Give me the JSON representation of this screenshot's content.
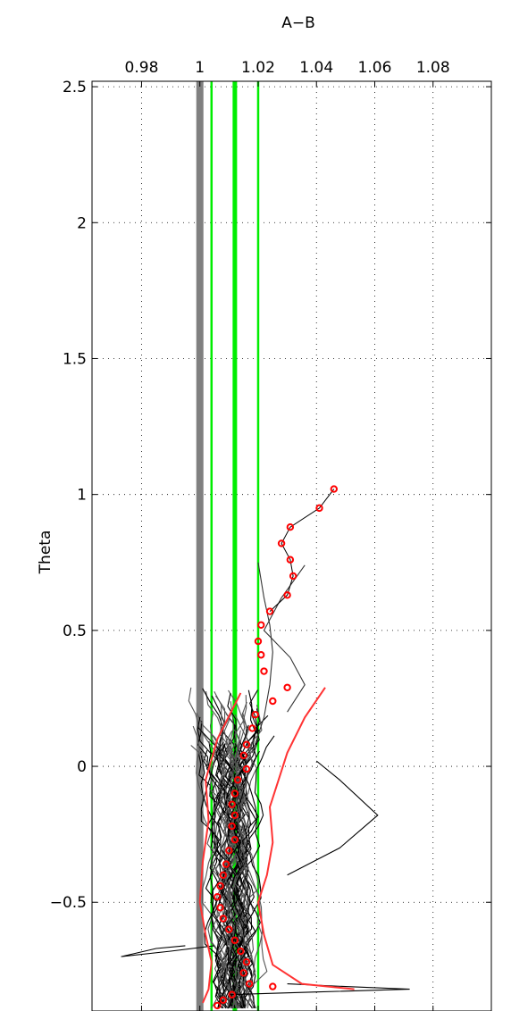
{
  "chart_data": {
    "type": "line",
    "title": "",
    "xlabel": "A−B",
    "ylabel": "Theta",
    "xlim": [
      0.963,
      1.1
    ],
    "ylim": [
      -0.9,
      2.52
    ],
    "grid": true,
    "x_axis_position": "top",
    "x_ticks": [
      0.98,
      1.0,
      1.02,
      1.04,
      1.06,
      1.08
    ],
    "x_tick_labels": [
      "0.98",
      "1",
      "1.02",
      "1.04",
      "1.06",
      "1.08"
    ],
    "y_ticks": [
      -0.5,
      0,
      0.5,
      1,
      1.5,
      2,
      2.5
    ],
    "y_tick_labels": [
      "−0.5",
      "0",
      "0.5",
      "1",
      "1.5",
      "2",
      "2.5"
    ],
    "reference_lines": [
      {
        "x": 1.0,
        "color": "#808080",
        "style": "thick"
      },
      {
        "x": 1.004,
        "color": "#00ee00",
        "style": "thin"
      },
      {
        "x": 1.012,
        "color": "#00ee00",
        "style": "thick"
      },
      {
        "x": 1.02,
        "color": "#00ee00",
        "style": "thin"
      }
    ],
    "mean_profile": {
      "color": "#ff0000",
      "marker": "circle",
      "points": [
        [
          1.046,
          1.02
        ],
        [
          1.041,
          0.95
        ],
        [
          1.031,
          0.88
        ],
        [
          1.028,
          0.82
        ],
        [
          1.031,
          0.76
        ],
        [
          1.032,
          0.7
        ],
        [
          1.03,
          0.63
        ],
        [
          1.024,
          0.57
        ],
        [
          1.021,
          0.52
        ],
        [
          1.02,
          0.46
        ],
        [
          1.021,
          0.41
        ],
        [
          1.022,
          0.35
        ],
        [
          1.03,
          0.29
        ],
        [
          1.025,
          0.24
        ],
        [
          1.019,
          0.19
        ],
        [
          1.018,
          0.14
        ],
        [
          1.016,
          0.08
        ],
        [
          1.015,
          0.04
        ],
        [
          1.016,
          -0.01
        ],
        [
          1.013,
          -0.05
        ],
        [
          1.012,
          -0.1
        ],
        [
          1.011,
          -0.14
        ],
        [
          1.012,
          -0.18
        ],
        [
          1.011,
          -0.22
        ],
        [
          1.012,
          -0.27
        ],
        [
          1.01,
          -0.31
        ],
        [
          1.009,
          -0.36
        ],
        [
          1.008,
          -0.4
        ],
        [
          1.007,
          -0.44
        ],
        [
          1.006,
          -0.48
        ],
        [
          1.007,
          -0.52
        ],
        [
          1.008,
          -0.56
        ],
        [
          1.01,
          -0.6
        ],
        [
          1.012,
          -0.64
        ],
        [
          1.014,
          -0.68
        ],
        [
          1.016,
          -0.72
        ],
        [
          1.015,
          -0.76
        ],
        [
          1.017,
          -0.8
        ],
        [
          1.011,
          -0.84
        ],
        [
          1.008,
          -0.86
        ],
        [
          1.006,
          -0.88
        ],
        [
          1.025,
          -0.81
        ]
      ]
    },
    "spread_bounds": {
      "color": "#ff3333",
      "lower": [
        [
          1.014,
          0.27
        ],
        [
          1.006,
          0.1
        ],
        [
          1.002,
          -0.05
        ],
        [
          1.003,
          -0.2
        ],
        [
          1.001,
          -0.35
        ],
        [
          1.0,
          -0.5
        ],
        [
          1.002,
          -0.62
        ],
        [
          1.004,
          -0.72
        ],
        [
          1.003,
          -0.82
        ],
        [
          1.001,
          -0.87
        ]
      ],
      "upper": [
        [
          1.043,
          0.29
        ],
        [
          1.036,
          0.18
        ],
        [
          1.03,
          0.05
        ],
        [
          1.027,
          -0.05
        ],
        [
          1.024,
          -0.15
        ],
        [
          1.025,
          -0.28
        ],
        [
          1.023,
          -0.4
        ],
        [
          1.02,
          -0.5
        ],
        [
          1.022,
          -0.62
        ],
        [
          1.025,
          -0.73
        ],
        [
          1.035,
          -0.8
        ],
        [
          1.053,
          -0.82
        ]
      ]
    },
    "ensemble": {
      "count": 60,
      "colors": [
        "#000000",
        "#555555"
      ],
      "theta_range": [
        -0.89,
        0.29
      ],
      "x_center": 1.012,
      "x_spread": 0.012,
      "highlighted": [
        {
          "color": "#333333",
          "points": [
            [
              1.02,
              0.75
            ],
            [
              1.022,
              0.62
            ],
            [
              1.024,
              0.52
            ],
            [
              1.025,
              0.42
            ],
            [
              1.024,
              0.3
            ],
            [
              1.022,
              0.18
            ],
            [
              1.018,
              0.05
            ]
          ]
        },
        {
          "color": "#333333",
          "points": [
            [
              1.036,
              0.74
            ],
            [
              1.028,
              0.62
            ],
            [
              1.022,
              0.5
            ],
            [
              1.031,
              0.4
            ],
            [
              1.036,
              0.3
            ],
            [
              1.03,
              0.2
            ]
          ]
        },
        {
          "color": "#000000",
          "points": [
            [
              1.04,
              0.02
            ],
            [
              1.048,
              -0.05
            ],
            [
              1.061,
              -0.18
            ],
            [
              1.048,
              -0.3
            ],
            [
              1.03,
              -0.4
            ]
          ]
        },
        {
          "color": "#000000",
          "points": [
            [
              0.995,
              -0.66
            ],
            [
              0.985,
              -0.67
            ],
            [
              0.973,
              -0.7
            ],
            [
              0.99,
              -0.68
            ],
            [
              1.005,
              -0.66
            ]
          ]
        },
        {
          "color": "#000000",
          "points": [
            [
              1.03,
              -0.8
            ],
            [
              1.05,
              -0.81
            ],
            [
              1.072,
              -0.82
            ],
            [
              1.04,
              -0.83
            ],
            [
              1.01,
              -0.84
            ]
          ]
        }
      ]
    }
  }
}
